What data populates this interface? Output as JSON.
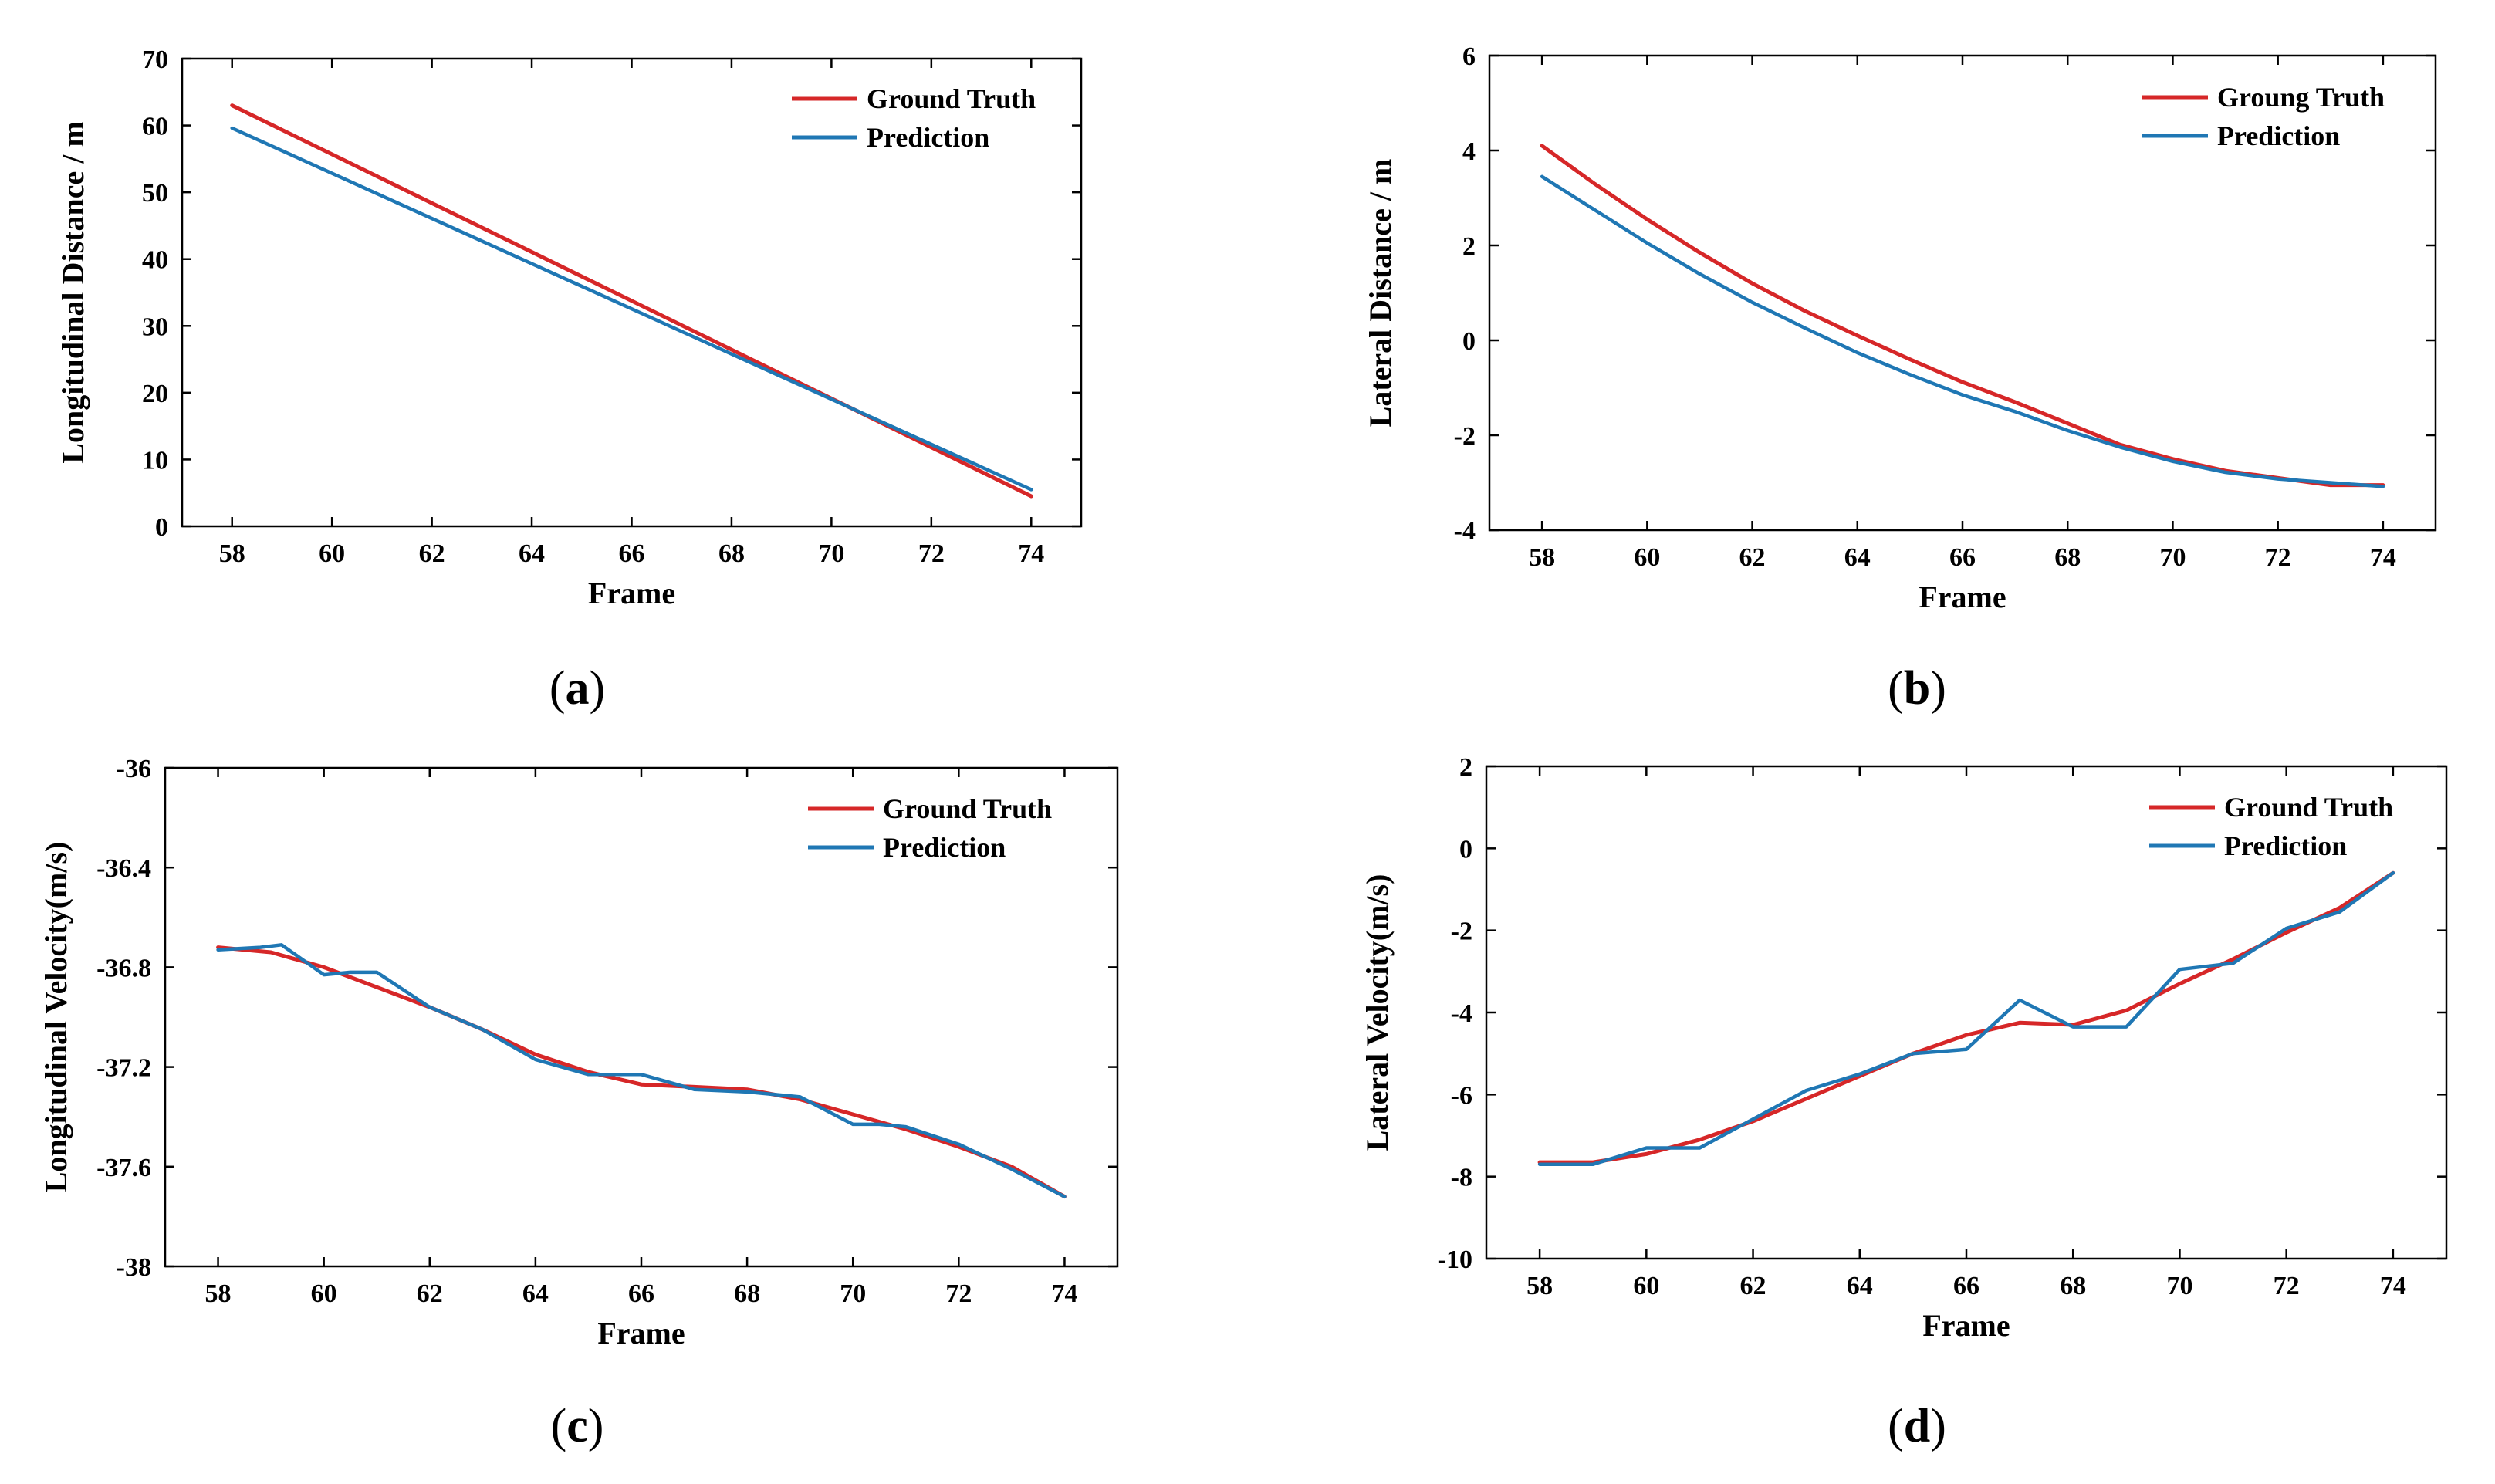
{
  "chart_data": [
    {
      "type": "line",
      "panel": "a",
      "title": "",
      "xlabel": "Frame",
      "ylabel": "Longitudinal Distance / m",
      "xlim": [
        57,
        75
      ],
      "ylim": [
        0,
        70
      ],
      "xticks": [
        58,
        60,
        62,
        64,
        66,
        68,
        70,
        72,
        74
      ],
      "yticks": [
        0,
        10,
        20,
        30,
        40,
        50,
        60,
        70
      ],
      "legend_position": "top-right",
      "colors": {
        "ground_truth": "#d62728",
        "prediction": "#1f77b4"
      },
      "series": [
        {
          "name": "Ground Truth",
          "x": [
            58,
            74
          ],
          "values": [
            63.0,
            4.5
          ]
        },
        {
          "name": "Prediction",
          "x": [
            58,
            74
          ],
          "values": [
            59.6,
            5.5
          ]
        }
      ]
    },
    {
      "type": "line",
      "panel": "b",
      "title": "",
      "xlabel": "Frame",
      "ylabel": "Lateral Distance / m",
      "xlim": [
        57,
        75
      ],
      "ylim": [
        -4,
        6
      ],
      "xticks": [
        58,
        60,
        62,
        64,
        66,
        68,
        70,
        72,
        74
      ],
      "yticks": [
        -4,
        -2,
        0,
        2,
        4,
        6
      ],
      "legend_position": "top-right",
      "colors": {
        "ground_truth": "#d62728",
        "prediction": "#1f77b4"
      },
      "series": [
        {
          "name": "Groung Truth",
          "x": [
            58,
            59,
            60,
            61,
            62,
            63,
            64,
            65,
            66,
            67,
            68,
            69,
            70,
            71,
            72,
            73,
            74
          ],
          "values": [
            4.1,
            3.3,
            2.55,
            1.85,
            1.2,
            0.62,
            0.1,
            -0.4,
            -0.88,
            -1.3,
            -1.75,
            -2.2,
            -2.5,
            -2.75,
            -2.9,
            -3.05,
            -3.05
          ]
        },
        {
          "name": "Prediction",
          "x": [
            58,
            59,
            60,
            61,
            62,
            63,
            64,
            65,
            66,
            67,
            68,
            69,
            70,
            71,
            72,
            73,
            74
          ],
          "values": [
            3.45,
            2.75,
            2.05,
            1.4,
            0.8,
            0.26,
            -0.26,
            -0.72,
            -1.15,
            -1.5,
            -1.9,
            -2.25,
            -2.55,
            -2.78,
            -2.92,
            -3.0,
            -3.08
          ]
        }
      ]
    },
    {
      "type": "line",
      "panel": "c",
      "title": "",
      "xlabel": "Frame",
      "ylabel": "Longitudinal Velocity(m/s)",
      "xlim": [
        57,
        75
      ],
      "ylim": [
        -38,
        -36
      ],
      "xticks": [
        58,
        60,
        62,
        64,
        66,
        68,
        70,
        72,
        74
      ],
      "yticks": [
        -38,
        -37.6,
        -37.2,
        -36.8,
        -36.4,
        -36
      ],
      "legend_position": "top-right",
      "colors": {
        "ground_truth": "#d62728",
        "prediction": "#1f77b4"
      },
      "series": [
        {
          "name": "Ground Truth",
          "x": [
            58,
            59,
            60,
            61,
            62,
            63,
            64,
            65,
            66,
            67,
            68,
            69,
            70,
            71,
            72,
            73,
            74
          ],
          "values": [
            -36.72,
            -36.74,
            -36.8,
            -36.88,
            -36.96,
            -37.05,
            -37.15,
            -37.22,
            -37.27,
            -37.28,
            -37.29,
            -37.33,
            -37.39,
            -37.45,
            -37.52,
            -37.6,
            -37.72
          ]
        },
        {
          "name": "Prediction",
          "x": [
            58,
            58.8,
            59.2,
            60,
            60.5,
            61,
            62,
            63,
            64,
            65,
            66,
            67,
            68,
            69,
            70,
            70.5,
            71,
            72,
            73,
            74
          ],
          "values": [
            -36.73,
            -36.72,
            -36.71,
            -36.83,
            -36.82,
            -36.82,
            -36.96,
            -37.05,
            -37.17,
            -37.23,
            -37.23,
            -37.29,
            -37.3,
            -37.32,
            -37.43,
            -37.43,
            -37.44,
            -37.51,
            -37.61,
            -37.72
          ]
        }
      ]
    },
    {
      "type": "line",
      "panel": "d",
      "title": "",
      "xlabel": "Frame",
      "ylabel": "Lateral Velocity(m/s)",
      "xlim": [
        57,
        75
      ],
      "ylim": [
        -10,
        2
      ],
      "xticks": [
        58,
        60,
        62,
        64,
        66,
        68,
        70,
        72,
        74
      ],
      "yticks": [
        -10,
        -8,
        -6,
        -4,
        -2,
        0,
        2
      ],
      "legend_position": "top-right",
      "colors": {
        "ground_truth": "#d62728",
        "prediction": "#1f77b4"
      },
      "series": [
        {
          "name": "Ground Truth",
          "x": [
            58,
            59,
            60,
            61,
            62,
            63,
            64,
            65,
            66,
            67,
            68,
            69,
            70,
            71,
            72,
            73,
            74
          ],
          "values": [
            -7.65,
            -7.65,
            -7.45,
            -7.1,
            -6.65,
            -6.1,
            -5.55,
            -5.0,
            -4.55,
            -4.25,
            -4.3,
            -3.95,
            -3.3,
            -2.7,
            -2.05,
            -1.45,
            -0.6
          ]
        },
        {
          "name": "Prediction",
          "x": [
            58,
            59,
            60,
            61,
            62,
            63,
            64,
            65,
            66,
            67,
            68,
            69,
            70,
            71,
            72,
            73,
            74
          ],
          "values": [
            -7.7,
            -7.7,
            -7.3,
            -7.3,
            -6.6,
            -5.9,
            -5.5,
            -5.0,
            -4.9,
            -3.7,
            -4.35,
            -4.35,
            -2.95,
            -2.8,
            -1.95,
            -1.55,
            -0.6
          ]
        }
      ]
    }
  ],
  "captions": [
    {
      "letter": "a"
    },
    {
      "letter": "b"
    },
    {
      "letter": "c"
    },
    {
      "letter": "d"
    }
  ]
}
